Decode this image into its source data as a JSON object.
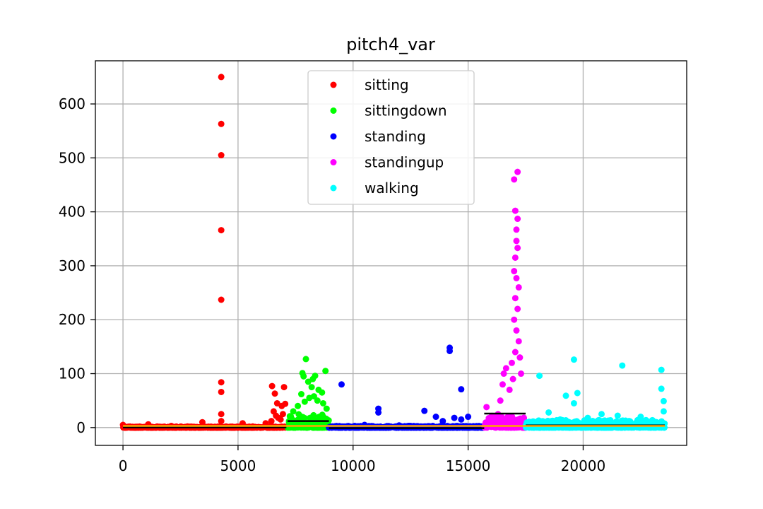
{
  "chart_data": {
    "type": "scatter",
    "title": "pitch4_var",
    "xlabel": "",
    "ylabel": "",
    "xlim": [
      -1200,
      24500
    ],
    "ylim": [
      -33,
      680
    ],
    "x_ticks": [
      0,
      5000,
      10000,
      15000,
      20000
    ],
    "x_tick_labels": [
      "0",
      "5000",
      "10000",
      "15000",
      "20000"
    ],
    "y_ticks": [
      0,
      100,
      200,
      300,
      400,
      500,
      600
    ],
    "y_tick_labels": [
      "0",
      "100",
      "200",
      "300",
      "400",
      "500",
      "600"
    ],
    "grid": true,
    "legend_position": "upper-center",
    "series": [
      {
        "name": "sitting",
        "color": "#ff0000",
        "x_range": [
          0,
          7100
        ],
        "points": [
          [
            4270,
            650
          ],
          [
            4270,
            563
          ],
          [
            4270,
            505
          ],
          [
            4270,
            366
          ],
          [
            4270,
            237
          ],
          [
            4270,
            84
          ],
          [
            4270,
            66
          ],
          [
            4270,
            25
          ],
          [
            4270,
            12
          ],
          [
            6480,
            77
          ],
          [
            6600,
            63
          ],
          [
            7000,
            75
          ],
          [
            7050,
            44
          ],
          [
            6700,
            45
          ],
          [
            6900,
            40
          ],
          [
            5200,
            8
          ],
          [
            3450,
            10
          ],
          [
            1100,
            6
          ],
          [
            0,
            5
          ],
          [
            2100,
            3
          ],
          [
            2800,
            2
          ],
          [
            6200,
            8
          ],
          [
            6550,
            30
          ],
          [
            6650,
            22
          ],
          [
            6750,
            18
          ],
          [
            6850,
            15
          ],
          [
            6450,
            12
          ],
          [
            6950,
            25
          ]
        ]
      },
      {
        "name": "sittingdown",
        "color": "#00ff00",
        "x_range": [
          7150,
          8950
        ],
        "points": [
          [
            7950,
            127
          ],
          [
            7800,
            101
          ],
          [
            7850,
            95
          ],
          [
            8050,
            85
          ],
          [
            8250,
            90
          ],
          [
            8350,
            96
          ],
          [
            8800,
            105
          ],
          [
            8200,
            75
          ],
          [
            8500,
            70
          ],
          [
            7750,
            62
          ],
          [
            8650,
            65
          ],
          [
            7400,
            30
          ],
          [
            7600,
            40
          ],
          [
            8100,
            55
          ],
          [
            8450,
            50
          ],
          [
            8700,
            45
          ],
          [
            7300,
            20
          ],
          [
            8850,
            35
          ],
          [
            7900,
            48
          ],
          [
            8300,
            58
          ]
        ]
      },
      {
        "name": "standing",
        "color": "#0000ff",
        "x_range": [
          8950,
          15700
        ],
        "points": [
          [
            14200,
            148
          ],
          [
            14200,
            142
          ],
          [
            9500,
            80
          ],
          [
            14700,
            71
          ],
          [
            11100,
            35
          ],
          [
            11100,
            28
          ],
          [
            13100,
            31
          ],
          [
            13600,
            20
          ],
          [
            14400,
            18
          ],
          [
            15000,
            20
          ],
          [
            14700,
            15
          ],
          [
            13900,
            12
          ],
          [
            10500,
            5
          ],
          [
            12000,
            4
          ],
          [
            12500,
            3
          ]
        ]
      },
      {
        "name": "standingup",
        "color": "#ff00ff",
        "x_range": [
          15700,
          17500
        ],
        "points": [
          [
            17150,
            474
          ],
          [
            17000,
            460
          ],
          [
            17050,
            402
          ],
          [
            17150,
            387
          ],
          [
            17100,
            367
          ],
          [
            17100,
            346
          ],
          [
            17150,
            333
          ],
          [
            17050,
            315
          ],
          [
            17000,
            290
          ],
          [
            17100,
            277
          ],
          [
            17200,
            260
          ],
          [
            17050,
            240
          ],
          [
            17150,
            220
          ],
          [
            17000,
            200
          ],
          [
            17100,
            180
          ],
          [
            17200,
            160
          ],
          [
            17050,
            140
          ],
          [
            17250,
            130
          ],
          [
            16900,
            120
          ],
          [
            16550,
            100
          ],
          [
            16650,
            110
          ],
          [
            16500,
            80
          ],
          [
            15800,
            38
          ],
          [
            16300,
            25
          ],
          [
            16950,
            90
          ],
          [
            17300,
            100
          ],
          [
            16800,
            70
          ],
          [
            16400,
            50
          ]
        ]
      },
      {
        "name": "walking",
        "color": "#00ffff",
        "x_range": [
          17500,
          23550
        ],
        "points": [
          [
            19600,
            126
          ],
          [
            21700,
            115
          ],
          [
            23400,
            107
          ],
          [
            18100,
            96
          ],
          [
            23400,
            72
          ],
          [
            19750,
            64
          ],
          [
            19250,
            59
          ],
          [
            23500,
            49
          ],
          [
            19600,
            45
          ],
          [
            23500,
            30
          ],
          [
            18500,
            28
          ],
          [
            20800,
            25
          ],
          [
            21500,
            22
          ],
          [
            22500,
            20
          ],
          [
            20200,
            18
          ],
          [
            19000,
            15
          ],
          [
            22000,
            12
          ],
          [
            18800,
            10
          ],
          [
            21000,
            8
          ],
          [
            23000,
            10
          ]
        ]
      }
    ],
    "mean_lines": [
      {
        "color": "#000000",
        "x": [
          0,
          7100
        ],
        "y": 0.5
      },
      {
        "color": "#000000",
        "x": [
          7150,
          8950
        ],
        "y": 12
      },
      {
        "color": "#000000",
        "x": [
          8950,
          15700
        ],
        "y": -1
      },
      {
        "color": "#000000",
        "x": [
          15700,
          17500
        ],
        "y": 26
      },
      {
        "color": "#000000",
        "x": [
          17500,
          23550
        ],
        "y": 4
      }
    ],
    "overall_line": {
      "color": "#ffa500",
      "x": [
        0,
        23550
      ],
      "y": 3
    }
  }
}
